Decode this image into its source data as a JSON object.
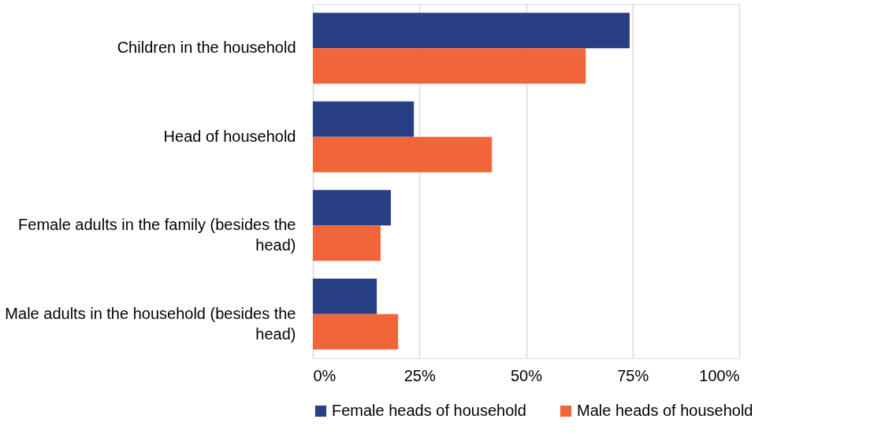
{
  "chart_data": {
    "type": "bar",
    "orientation": "horizontal",
    "categories": [
      "Children in the household",
      "Head of household",
      "Female adults in the family (besides the head)",
      "Male adults in the household (besides the head)"
    ],
    "series": [
      {
        "name": "Female heads of household",
        "color": "#283f86",
        "values": [
          74.3,
          23.7,
          18.3,
          15.0
        ]
      },
      {
        "name": "Male heads of household",
        "color": "#f0663a",
        "values": [
          64.0,
          42.0,
          15.9,
          20.0
        ]
      }
    ],
    "xlim": [
      0,
      100
    ],
    "xticks": [
      {
        "value": 0,
        "label": "0%"
      },
      {
        "value": 25,
        "label": "25%"
      },
      {
        "value": 50,
        "label": "50%"
      },
      {
        "value": 75,
        "label": "75%"
      },
      {
        "value": 100,
        "label": "100%"
      }
    ],
    "grid": "x",
    "legend": "bottom"
  }
}
